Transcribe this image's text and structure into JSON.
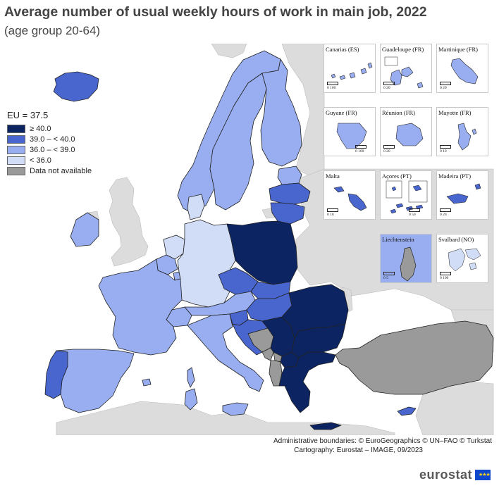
{
  "title": "Average number of usual weekly hours of work in main job, 2022",
  "subtitle": "(age group 20-64)",
  "legend": {
    "eu_label": "EU = 37.5",
    "items": [
      {
        "label": "≥ 40.0",
        "color": "#0c2461"
      },
      {
        "label": "39.0 – < 40.0",
        "color": "#4966cf"
      },
      {
        "label": "36.0 – < 39.0",
        "color": "#98aef0"
      },
      {
        "label": "< 36.0",
        "color": "#d1dcf7"
      },
      {
        "label": "Data not available",
        "color": "#9a9a9a"
      }
    ]
  },
  "colors": {
    "sea": "#ffffff",
    "non_eu_land": "#dcdcdc",
    "borders": "#222222"
  },
  "regions": {
    "iceland": "39.0 – < 40.0",
    "norway": "36.0 – < 39.0",
    "sweden": "36.0 – < 39.0",
    "finland": "36.0 – < 39.0",
    "estonia": "36.0 – < 39.0",
    "latvia": "39.0 – < 40.0",
    "lithuania": "39.0 – < 40.0",
    "denmark": "< 36.0",
    "ireland": "36.0 – < 39.0",
    "netherlands": "< 36.0",
    "belgium": "36.0 – < 39.0",
    "luxembourg": "36.0 – < 39.0",
    "germany": "< 36.0",
    "poland": "≥ 40.0",
    "czechia": "39.0 – < 40.0",
    "slovakia": "39.0 – < 40.0",
    "hungary": "39.0 – < 40.0",
    "austria": "36.0 – < 39.0",
    "switzerland": "36.0 – < 39.0",
    "france": "36.0 – < 39.0",
    "spain": "36.0 – < 39.0",
    "portugal": "39.0 – < 40.0",
    "italy": "36.0 – < 39.0",
    "slovenia": "39.0 – < 40.0",
    "croatia": "39.0 – < 40.0",
    "bosnia_herzegovina": "Data not available",
    "serbia": "≥ 40.0",
    "montenegro": "Data not available",
    "albania": "Data not available",
    "north_macedonia": "≥ 40.0",
    "romania": "≥ 40.0",
    "bulgaria": "≥ 40.0",
    "greece": "≥ 40.0",
    "cyprus": "39.0 – < 40.0",
    "turkey": "Data not available",
    "kosovo": "Data not available",
    "malta": "39.0 – < 40.0"
  },
  "insets": [
    {
      "name": "Canarias (ES)",
      "scale": "0    100",
      "color": "#98aef0"
    },
    {
      "name": "Guadeloupe (FR)",
      "scale": "0    20",
      "color": "#98aef0"
    },
    {
      "name": "Martinique (FR)",
      "scale": "0    20",
      "color": "#98aef0"
    },
    {
      "name": "Guyane (FR)",
      "scale": "0    100",
      "color": "#98aef0"
    },
    {
      "name": "Réunion (FR)",
      "scale": "0    20",
      "color": "#98aef0"
    },
    {
      "name": "Mayotte (FR)",
      "scale": "0    10",
      "color": "#98aef0"
    },
    {
      "name": "Malta",
      "scale": "0    10",
      "color": "#4966cf"
    },
    {
      "name": "Açores (PT)",
      "scale": "0    50",
      "color": "#4966cf"
    },
    {
      "name": "Madeira (PT)",
      "scale": "0    20",
      "color": "#4966cf"
    },
    {
      "name": "Liechtenstein",
      "scale": "0    5",
      "color": "#9a9a9a"
    },
    {
      "name": "Svalbard (NO)",
      "scale": "0    100",
      "color": "#d1dcf7"
    }
  ],
  "credits": {
    "line1": "Administrative boundaries: © EuroGeographics © UN–FAO © Turkstat",
    "line2": "Cartography: Eurostat – IMAGE, 09/2023"
  },
  "logo": {
    "text": "eurostat",
    "flag_stars": "★★★"
  }
}
